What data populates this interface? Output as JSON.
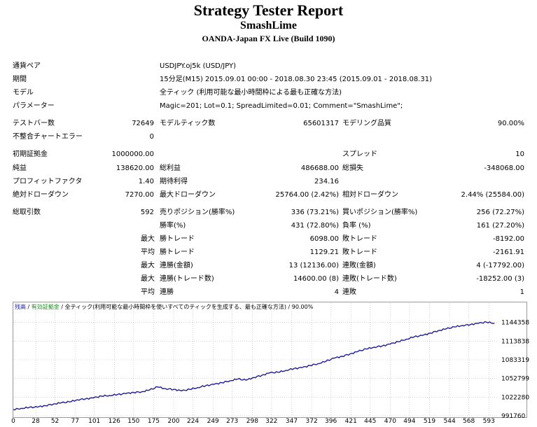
{
  "header": {
    "title": "Strategy Tester Report",
    "ea_name": "SmashLime",
    "broker": "OANDA-Japan FX Live (Build 1090)"
  },
  "info": [
    {
      "label": "通貨ペア",
      "value": "USDJPY.oj5k (USD/JPY)"
    },
    {
      "label": "期間",
      "value": "15分足(M15) 2015.09.01 00:00 - 2018.08.30 23:45 (2015.09.01 - 2018.08.31)"
    },
    {
      "label": "モデル",
      "value": "全ティック (利用可能な最小時間枠による最も正確な方法)"
    },
    {
      "label": "パラメーター",
      "value": "Magic=201; Lot=0.1; SpreadLimited=0.01; Comment=\"SmashLime\";"
    }
  ],
  "stats": {
    "bars_label": "テストバー数",
    "bars_value": "72649",
    "ticks_label": "モデルティック数",
    "ticks_value": "65601317",
    "quality_label": "モデリング品質",
    "quality_value": "90.00%",
    "mismatch_label": "不整合チャートエラー",
    "mismatch_value": "0",
    "deposit_label": "初期証拠金",
    "deposit_value": "1000000.00",
    "spread_label": "スプレッド",
    "spread_value": "10",
    "net_label": "純益",
    "net_value": "138620.00",
    "gross_profit_label": "総利益",
    "gross_profit_value": "486688.00",
    "gross_loss_label": "総損失",
    "gross_loss_value": "-348068.00",
    "pf_label": "プロフィットファクタ",
    "pf_value": "1.40",
    "expected_label": "期待利得",
    "expected_value": "234.16",
    "abs_dd_label": "絶対ドローダウン",
    "abs_dd_value": "7270.00",
    "max_dd_label": "最大ドローダウン",
    "max_dd_value": "25764.00 (2.42%)",
    "rel_dd_label": "相対ドローダウン",
    "rel_dd_value": "2.44% (25584.00)",
    "trades_label": "総取引数",
    "trades_value": "592",
    "short_label": "売りポジション(勝率%)",
    "short_value": "336 (73.21%)",
    "long_label": "買いポジション(勝率%)",
    "long_value": "256 (72.27%)",
    "win_label": "勝率(%)",
    "win_value": "431 (72.80%)",
    "loss_label": "負率 (%)",
    "loss_value": "161 (27.20%)",
    "max_prefix": "最大",
    "avg_prefix": "平均",
    "largest_win_label": "勝トレード",
    "largest_win_value": "6098.00",
    "largest_loss_label": "敗トレード",
    "largest_loss_value": "-8192.00",
    "avg_win_label": "勝トレード",
    "avg_win_value": "1129.21",
    "avg_loss_label": "敗トレード",
    "avg_loss_value": "-2161.91",
    "max_cons_wins_label": "連勝(金額)",
    "max_cons_wins_value": "13 (12136.00)",
    "max_cons_losses_label": "連敗(金額)",
    "max_cons_losses_value": "4 (-17792.00)",
    "max_cons_profit_label": "連勝(トレード数)",
    "max_cons_profit_value": "14600.00 (8)",
    "max_cons_loss_label": "連敗(トレード数)",
    "max_cons_loss_value": "-18252.00 (3)",
    "avg_cons_wins_label": "連勝",
    "avg_cons_wins_value": "4",
    "avg_cons_losses_label": "連敗",
    "avg_cons_losses_value": "1"
  },
  "legend": {
    "balance": "残高",
    "sep1": "/",
    "equity": "有効証拠金",
    "sep2": "/",
    "model": "全ティック(利用可能な最小時間枠を使いすべてのティックを生成する、最も正確な方法)",
    "quality": "/ 90.00%"
  },
  "colors": {
    "balance_line": "#1c1c9c",
    "balance_text": "#1c1c9c",
    "equity_text": "#1a8a1a",
    "grid": "#b8b8b8"
  },
  "chart_data": {
    "type": "line",
    "x_ticks": [
      "0",
      "28",
      "52",
      "77",
      "101",
      "126",
      "150",
      "175",
      "200",
      "224",
      "249",
      "273",
      "298",
      "322",
      "347",
      "372",
      "396",
      "421",
      "445",
      "470",
      "494",
      "519",
      "544",
      "568",
      "593"
    ],
    "y_ticks": [
      "1144358",
      "1113838",
      "1083319",
      "1052799",
      "1022280",
      "991760"
    ],
    "ylim": [
      991760,
      1160000
    ],
    "xlim": [
      0,
      605
    ],
    "grid": true,
    "series": [
      {
        "x": [
          0,
          10,
          20,
          30,
          40,
          50,
          60,
          70,
          80,
          90,
          100,
          110,
          120,
          130,
          140,
          150,
          160,
          170,
          180,
          190,
          200,
          210,
          220,
          230,
          240,
          250,
          260,
          270,
          280,
          290,
          300,
          310,
          320,
          330,
          340,
          350,
          360,
          370,
          380,
          390,
          400,
          410,
          420,
          430,
          440,
          450,
          460,
          470,
          480,
          490,
          500,
          510,
          520,
          530,
          540,
          550,
          560,
          570,
          580,
          590,
          600
        ],
        "y": [
          1002000,
          1004000,
          1005500,
          1006000,
          1008500,
          1011000,
          1013000,
          1014500,
          1018000,
          1019500,
          1021000,
          1024000,
          1025000,
          1026500,
          1028000,
          1030000,
          1031000,
          1034000,
          1039000,
          1036000,
          1035000,
          1032500,
          1035000,
          1038000,
          1041000,
          1043000,
          1046000,
          1049000,
          1052000,
          1050000,
          1054500,
          1058000,
          1062000,
          1063000,
          1066000,
          1069000,
          1070500,
          1074000,
          1077000,
          1081000,
          1086000,
          1089000,
          1093000,
          1097000,
          1101000,
          1104000,
          1106000,
          1109000,
          1113000,
          1117000,
          1121000,
          1123000,
          1127000,
          1131000,
          1134000,
          1137000,
          1139500,
          1141000,
          1143000,
          1145000,
          1143000
        ]
      }
    ]
  }
}
